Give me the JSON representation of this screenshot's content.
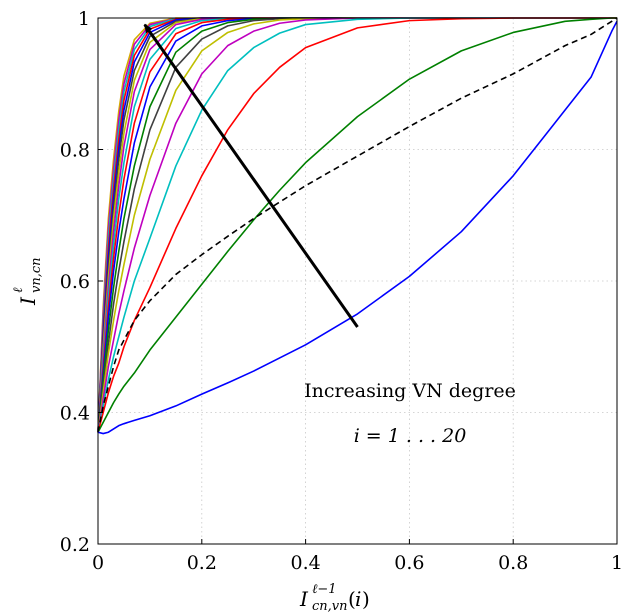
{
  "chart_data": {
    "type": "line",
    "xlabel": "I^{ℓ−1}_{cn,vn}(i)",
    "ylabel": "I^ℓ_{vn,cn}",
    "xlim": [
      0,
      1
    ],
    "ylim": [
      0.2,
      1
    ],
    "xticks": [
      0,
      0.2,
      0.4,
      0.6,
      0.8,
      1
    ],
    "yticks": [
      0.2,
      0.4,
      0.6,
      0.8,
      1
    ],
    "xtick_labels": [
      "0",
      "0.2",
      "0.4",
      "0.6",
      "0.8",
      "1"
    ],
    "ytick_labels": [
      "0.2",
      "0.4",
      "0.6",
      "0.8",
      "1"
    ],
    "grid": true,
    "annotation": {
      "line1": "Increasing VN degree",
      "line2": "i = 1 . . . 20",
      "arrow_from": [
        0.5,
        0.53
      ],
      "arrow_to": [
        0.09,
        0.99
      ]
    },
    "x": [
      0,
      0.01,
      0.02,
      0.03,
      0.04,
      0.05,
      0.07,
      0.1,
      0.15,
      0.2,
      0.25,
      0.3,
      0.35,
      0.4,
      0.5,
      0.6,
      0.7,
      0.8,
      0.9,
      0.95,
      0.99,
      1.0
    ],
    "series": [
      {
        "color": "#0000ff",
        "dash": false,
        "values": [
          0.37,
          0.368,
          0.37,
          0.375,
          0.38,
          0.383,
          0.388,
          0.395,
          0.41,
          0.428,
          0.445,
          0.463,
          0.483,
          0.503,
          0.55,
          0.607,
          0.675,
          0.76,
          0.86,
          0.91,
          0.98,
          0.995
        ]
      },
      {
        "color": "#000000",
        "dash": true,
        "values": [
          0.37,
          0.41,
          0.44,
          0.47,
          0.495,
          0.51,
          0.54,
          0.57,
          0.61,
          0.64,
          0.668,
          0.695,
          0.72,
          0.745,
          0.79,
          0.835,
          0.878,
          0.915,
          0.958,
          0.975,
          0.995,
          1.0
        ]
      },
      {
        "color": "#008000",
        "dash": false,
        "values": [
          0.37,
          0.385,
          0.4,
          0.415,
          0.428,
          0.44,
          0.46,
          0.495,
          0.545,
          0.595,
          0.645,
          0.693,
          0.738,
          0.78,
          0.85,
          0.907,
          0.95,
          0.978,
          0.995,
          0.998,
          1.0,
          1.0
        ]
      },
      {
        "color": "#ff0000",
        "dash": false,
        "values": [
          0.37,
          0.4,
          0.43,
          0.455,
          0.475,
          0.5,
          0.54,
          0.59,
          0.68,
          0.76,
          0.83,
          0.885,
          0.925,
          0.955,
          0.985,
          0.996,
          0.999,
          1.0,
          1.0,
          1.0,
          1.0,
          1.0
        ]
      },
      {
        "color": "#00bfbf",
        "dash": false,
        "values": [
          0.37,
          0.41,
          0.45,
          0.485,
          0.515,
          0.545,
          0.6,
          0.665,
          0.775,
          0.86,
          0.92,
          0.955,
          0.977,
          0.99,
          0.998,
          1.0,
          1.0,
          1.0,
          1.0,
          1.0,
          1.0,
          1.0
        ]
      },
      {
        "color": "#bf00bf",
        "dash": false,
        "values": [
          0.37,
          0.42,
          0.47,
          0.51,
          0.55,
          0.585,
          0.65,
          0.73,
          0.84,
          0.915,
          0.958,
          0.98,
          0.992,
          0.997,
          1.0,
          1.0,
          1.0,
          1.0,
          1.0,
          1.0,
          1.0,
          1.0
        ]
      },
      {
        "color": "#bfbf00",
        "dash": false,
        "values": [
          0.37,
          0.43,
          0.49,
          0.54,
          0.585,
          0.625,
          0.7,
          0.785,
          0.89,
          0.95,
          0.978,
          0.991,
          0.997,
          0.999,
          1.0,
          1.0,
          1.0,
          1.0,
          1.0,
          1.0,
          1.0,
          1.0
        ]
      },
      {
        "color": "#404040",
        "dash": false,
        "values": [
          0.37,
          0.44,
          0.505,
          0.565,
          0.615,
          0.66,
          0.74,
          0.83,
          0.925,
          0.968,
          0.988,
          0.996,
          0.999,
          1.0,
          1.0,
          1.0,
          1.0,
          1.0,
          1.0,
          1.0,
          1.0,
          1.0
        ]
      },
      {
        "color": "#008000",
        "dash": false,
        "values": [
          0.37,
          0.45,
          0.525,
          0.59,
          0.645,
          0.695,
          0.775,
          0.865,
          0.948,
          0.98,
          0.993,
          0.998,
          1.0,
          1.0,
          1.0,
          1.0,
          1.0,
          1.0,
          1.0,
          1.0,
          1.0,
          1.0
        ]
      },
      {
        "color": "#0000ff",
        "dash": false,
        "values": [
          0.37,
          0.46,
          0.545,
          0.615,
          0.675,
          0.725,
          0.81,
          0.895,
          0.965,
          0.988,
          0.996,
          0.999,
          1.0,
          1.0,
          1.0,
          1.0,
          1.0,
          1.0,
          1.0,
          1.0,
          1.0,
          1.0
        ]
      },
      {
        "color": "#ff0000",
        "dash": false,
        "values": [
          0.37,
          0.47,
          0.56,
          0.635,
          0.7,
          0.755,
          0.84,
          0.918,
          0.976,
          0.993,
          0.998,
          1.0,
          1.0,
          1.0,
          1.0,
          1.0,
          1.0,
          1.0,
          1.0,
          1.0,
          1.0,
          1.0
        ]
      },
      {
        "color": "#00bfbf",
        "dash": false,
        "values": [
          0.37,
          0.48,
          0.575,
          0.655,
          0.725,
          0.78,
          0.865,
          0.937,
          0.984,
          0.996,
          0.999,
          1.0,
          1.0,
          1.0,
          1.0,
          1.0,
          1.0,
          1.0,
          1.0,
          1.0,
          1.0,
          1.0
        ]
      },
      {
        "color": "#bf00bf",
        "dash": false,
        "values": [
          0.37,
          0.49,
          0.59,
          0.675,
          0.745,
          0.805,
          0.888,
          0.952,
          0.99,
          0.998,
          1.0,
          1.0,
          1.0,
          1.0,
          1.0,
          1.0,
          1.0,
          1.0,
          1.0,
          1.0,
          1.0,
          1.0
        ]
      },
      {
        "color": "#bfbf00",
        "dash": false,
        "values": [
          0.37,
          0.5,
          0.605,
          0.695,
          0.765,
          0.825,
          0.905,
          0.963,
          0.993,
          0.999,
          1.0,
          1.0,
          1.0,
          1.0,
          1.0,
          1.0,
          1.0,
          1.0,
          1.0,
          1.0,
          1.0,
          1.0
        ]
      },
      {
        "color": "#404040",
        "dash": false,
        "values": [
          0.37,
          0.51,
          0.62,
          0.71,
          0.785,
          0.845,
          0.92,
          0.972,
          0.995,
          0.999,
          1.0,
          1.0,
          1.0,
          1.0,
          1.0,
          1.0,
          1.0,
          1.0,
          1.0,
          1.0,
          1.0,
          1.0
        ]
      },
      {
        "color": "#0000ff",
        "dash": false,
        "values": [
          0.37,
          0.52,
          0.635,
          0.725,
          0.8,
          0.86,
          0.933,
          0.978,
          0.997,
          1.0,
          1.0,
          1.0,
          1.0,
          1.0,
          1.0,
          1.0,
          1.0,
          1.0,
          1.0,
          1.0,
          1.0,
          1.0
        ]
      },
      {
        "color": "#ff0000",
        "dash": false,
        "values": [
          0.37,
          0.53,
          0.65,
          0.74,
          0.815,
          0.875,
          0.943,
          0.983,
          0.998,
          1.0,
          1.0,
          1.0,
          1.0,
          1.0,
          1.0,
          1.0,
          1.0,
          1.0,
          1.0,
          1.0,
          1.0,
          1.0
        ]
      },
      {
        "color": "#00bfbf",
        "dash": false,
        "values": [
          0.37,
          0.54,
          0.665,
          0.755,
          0.83,
          0.888,
          0.952,
          0.987,
          0.999,
          1.0,
          1.0,
          1.0,
          1.0,
          1.0,
          1.0,
          1.0,
          1.0,
          1.0,
          1.0,
          1.0,
          1.0,
          1.0
        ]
      },
      {
        "color": "#bf00bf",
        "dash": false,
        "values": [
          0.37,
          0.55,
          0.68,
          0.77,
          0.845,
          0.9,
          0.96,
          0.99,
          0.999,
          1.0,
          1.0,
          1.0,
          1.0,
          1.0,
          1.0,
          1.0,
          1.0,
          1.0,
          1.0,
          1.0,
          1.0,
          1.0
        ]
      },
      {
        "color": "#d4aa00",
        "dash": false,
        "values": [
          0.37,
          0.56,
          0.695,
          0.785,
          0.858,
          0.912,
          0.967,
          0.992,
          1.0,
          1.0,
          1.0,
          1.0,
          1.0,
          1.0,
          1.0,
          1.0,
          1.0,
          1.0,
          1.0,
          1.0,
          1.0,
          1.0
        ]
      }
    ]
  }
}
